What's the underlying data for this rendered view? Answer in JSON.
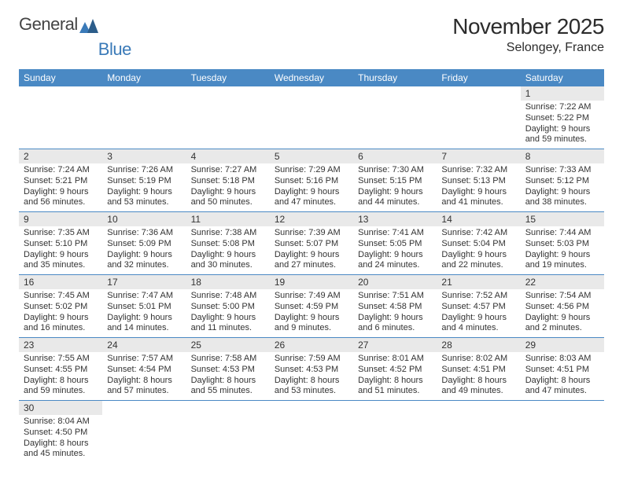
{
  "brand": {
    "part1": "General",
    "part2": "Blue"
  },
  "title": "November 2025",
  "location": "Selongey, France",
  "colors": {
    "header_bg": "#4a89c4",
    "row_divider": "#4a89c4",
    "daynum_bg": "#e9e9e9",
    "text": "#333333",
    "brand_blue": "#3a7ab8"
  },
  "day_labels": [
    "Sunday",
    "Monday",
    "Tuesday",
    "Wednesday",
    "Thursday",
    "Friday",
    "Saturday"
  ],
  "weeks": [
    [
      null,
      null,
      null,
      null,
      null,
      null,
      {
        "d": "1",
        "sunrise": "Sunrise: 7:22 AM",
        "sunset": "Sunset: 5:22 PM",
        "day1": "Daylight: 9 hours",
        "day2": "and 59 minutes."
      }
    ],
    [
      {
        "d": "2",
        "sunrise": "Sunrise: 7:24 AM",
        "sunset": "Sunset: 5:21 PM",
        "day1": "Daylight: 9 hours",
        "day2": "and 56 minutes."
      },
      {
        "d": "3",
        "sunrise": "Sunrise: 7:26 AM",
        "sunset": "Sunset: 5:19 PM",
        "day1": "Daylight: 9 hours",
        "day2": "and 53 minutes."
      },
      {
        "d": "4",
        "sunrise": "Sunrise: 7:27 AM",
        "sunset": "Sunset: 5:18 PM",
        "day1": "Daylight: 9 hours",
        "day2": "and 50 minutes."
      },
      {
        "d": "5",
        "sunrise": "Sunrise: 7:29 AM",
        "sunset": "Sunset: 5:16 PM",
        "day1": "Daylight: 9 hours",
        "day2": "and 47 minutes."
      },
      {
        "d": "6",
        "sunrise": "Sunrise: 7:30 AM",
        "sunset": "Sunset: 5:15 PM",
        "day1": "Daylight: 9 hours",
        "day2": "and 44 minutes."
      },
      {
        "d": "7",
        "sunrise": "Sunrise: 7:32 AM",
        "sunset": "Sunset: 5:13 PM",
        "day1": "Daylight: 9 hours",
        "day2": "and 41 minutes."
      },
      {
        "d": "8",
        "sunrise": "Sunrise: 7:33 AM",
        "sunset": "Sunset: 5:12 PM",
        "day1": "Daylight: 9 hours",
        "day2": "and 38 minutes."
      }
    ],
    [
      {
        "d": "9",
        "sunrise": "Sunrise: 7:35 AM",
        "sunset": "Sunset: 5:10 PM",
        "day1": "Daylight: 9 hours",
        "day2": "and 35 minutes."
      },
      {
        "d": "10",
        "sunrise": "Sunrise: 7:36 AM",
        "sunset": "Sunset: 5:09 PM",
        "day1": "Daylight: 9 hours",
        "day2": "and 32 minutes."
      },
      {
        "d": "11",
        "sunrise": "Sunrise: 7:38 AM",
        "sunset": "Sunset: 5:08 PM",
        "day1": "Daylight: 9 hours",
        "day2": "and 30 minutes."
      },
      {
        "d": "12",
        "sunrise": "Sunrise: 7:39 AM",
        "sunset": "Sunset: 5:07 PM",
        "day1": "Daylight: 9 hours",
        "day2": "and 27 minutes."
      },
      {
        "d": "13",
        "sunrise": "Sunrise: 7:41 AM",
        "sunset": "Sunset: 5:05 PM",
        "day1": "Daylight: 9 hours",
        "day2": "and 24 minutes."
      },
      {
        "d": "14",
        "sunrise": "Sunrise: 7:42 AM",
        "sunset": "Sunset: 5:04 PM",
        "day1": "Daylight: 9 hours",
        "day2": "and 22 minutes."
      },
      {
        "d": "15",
        "sunrise": "Sunrise: 7:44 AM",
        "sunset": "Sunset: 5:03 PM",
        "day1": "Daylight: 9 hours",
        "day2": "and 19 minutes."
      }
    ],
    [
      {
        "d": "16",
        "sunrise": "Sunrise: 7:45 AM",
        "sunset": "Sunset: 5:02 PM",
        "day1": "Daylight: 9 hours",
        "day2": "and 16 minutes."
      },
      {
        "d": "17",
        "sunrise": "Sunrise: 7:47 AM",
        "sunset": "Sunset: 5:01 PM",
        "day1": "Daylight: 9 hours",
        "day2": "and 14 minutes."
      },
      {
        "d": "18",
        "sunrise": "Sunrise: 7:48 AM",
        "sunset": "Sunset: 5:00 PM",
        "day1": "Daylight: 9 hours",
        "day2": "and 11 minutes."
      },
      {
        "d": "19",
        "sunrise": "Sunrise: 7:49 AM",
        "sunset": "Sunset: 4:59 PM",
        "day1": "Daylight: 9 hours",
        "day2": "and 9 minutes."
      },
      {
        "d": "20",
        "sunrise": "Sunrise: 7:51 AM",
        "sunset": "Sunset: 4:58 PM",
        "day1": "Daylight: 9 hours",
        "day2": "and 6 minutes."
      },
      {
        "d": "21",
        "sunrise": "Sunrise: 7:52 AM",
        "sunset": "Sunset: 4:57 PM",
        "day1": "Daylight: 9 hours",
        "day2": "and 4 minutes."
      },
      {
        "d": "22",
        "sunrise": "Sunrise: 7:54 AM",
        "sunset": "Sunset: 4:56 PM",
        "day1": "Daylight: 9 hours",
        "day2": "and 2 minutes."
      }
    ],
    [
      {
        "d": "23",
        "sunrise": "Sunrise: 7:55 AM",
        "sunset": "Sunset: 4:55 PM",
        "day1": "Daylight: 8 hours",
        "day2": "and 59 minutes."
      },
      {
        "d": "24",
        "sunrise": "Sunrise: 7:57 AM",
        "sunset": "Sunset: 4:54 PM",
        "day1": "Daylight: 8 hours",
        "day2": "and 57 minutes."
      },
      {
        "d": "25",
        "sunrise": "Sunrise: 7:58 AM",
        "sunset": "Sunset: 4:53 PM",
        "day1": "Daylight: 8 hours",
        "day2": "and 55 minutes."
      },
      {
        "d": "26",
        "sunrise": "Sunrise: 7:59 AM",
        "sunset": "Sunset: 4:53 PM",
        "day1": "Daylight: 8 hours",
        "day2": "and 53 minutes."
      },
      {
        "d": "27",
        "sunrise": "Sunrise: 8:01 AM",
        "sunset": "Sunset: 4:52 PM",
        "day1": "Daylight: 8 hours",
        "day2": "and 51 minutes."
      },
      {
        "d": "28",
        "sunrise": "Sunrise: 8:02 AM",
        "sunset": "Sunset: 4:51 PM",
        "day1": "Daylight: 8 hours",
        "day2": "and 49 minutes."
      },
      {
        "d": "29",
        "sunrise": "Sunrise: 8:03 AM",
        "sunset": "Sunset: 4:51 PM",
        "day1": "Daylight: 8 hours",
        "day2": "and 47 minutes."
      }
    ],
    [
      {
        "d": "30",
        "sunrise": "Sunrise: 8:04 AM",
        "sunset": "Sunset: 4:50 PM",
        "day1": "Daylight: 8 hours",
        "day2": "and 45 minutes."
      },
      null,
      null,
      null,
      null,
      null,
      null
    ]
  ]
}
